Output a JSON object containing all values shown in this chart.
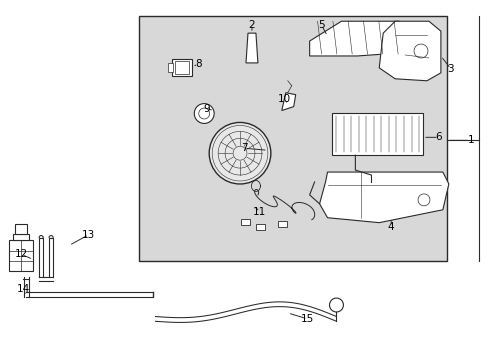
{
  "bg_color": "#ffffff",
  "box_bg": "#d8d8d8",
  "line_color": "#2a2a2a",
  "label_color": "#000000",
  "fig_width": 4.89,
  "fig_height": 3.6,
  "dpi": 100
}
